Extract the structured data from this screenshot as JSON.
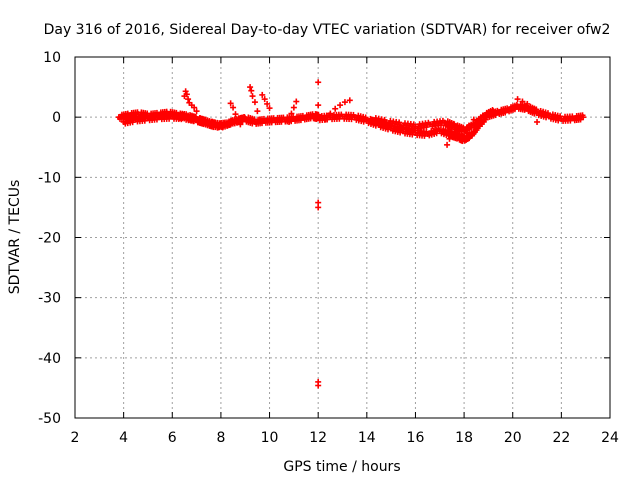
{
  "chart_data": {
    "type": "scatter",
    "title": "Day 316 of 2016, Sidereal Day-to-day VTEC variation (SDTVAR) for receiver ofw2",
    "xlabel": "GPS time / hours",
    "ylabel": "SDTVAR / TECUs",
    "xlim": [
      2,
      24
    ],
    "ylim": [
      -50,
      10
    ],
    "xticks": [
      2,
      4,
      6,
      8,
      10,
      12,
      14,
      16,
      18,
      20,
      22,
      24
    ],
    "yticks": [
      10,
      0,
      -10,
      -20,
      -30,
      -40,
      -50
    ],
    "xtick_labels": [
      "2",
      "4",
      "6",
      "8",
      "10",
      "12",
      "14",
      "16",
      "18",
      "20",
      "22",
      "24"
    ],
    "ytick_labels": [
      "10",
      "0",
      "-10",
      "-20",
      "-30",
      "-40",
      "-50"
    ],
    "grid": true,
    "marker_color": "#ff0000",
    "series": [
      {
        "name": "band-main",
        "x": [
          3.8,
          4.2,
          4.6,
          5.0,
          5.4,
          5.8,
          6.2,
          6.6,
          7.0,
          7.4,
          7.8,
          8.2,
          8.6,
          9.0,
          9.4,
          9.8,
          10.2,
          10.6,
          11.0,
          11.4,
          11.8,
          12.0
        ],
        "y": [
          0.0,
          0.3,
          0.5,
          0.2,
          0.4,
          0.6,
          0.3,
          0.1,
          -0.4,
          -0.9,
          -1.4,
          -1.2,
          -0.6,
          -0.3,
          -0.8,
          -0.6,
          -0.5,
          -0.4,
          -0.3,
          -0.1,
          0.2,
          0.0
        ]
      },
      {
        "name": "band-lower-arc",
        "x": [
          4.0,
          4.5,
          5.0,
          5.5,
          6.0,
          6.5,
          7.0,
          7.5,
          8.0,
          8.5,
          9.0
        ],
        "y": [
          -0.8,
          -0.4,
          -0.2,
          0.0,
          0.1,
          0.0,
          -0.4,
          -1.0,
          -1.5,
          -0.8,
          -0.2
        ]
      },
      {
        "name": "band-second",
        "x": [
          12.0,
          12.5,
          13.0,
          13.5,
          14.0,
          14.5,
          15.0,
          15.5,
          16.0,
          16.5,
          17.0,
          17.5,
          17.8,
          18.0,
          18.3,
          18.6,
          19.0,
          19.4,
          19.8,
          20.2,
          20.6,
          21.0,
          21.5,
          22.0,
          22.5,
          22.9
        ],
        "y": [
          -0.2,
          0.0,
          0.1,
          0.0,
          -0.5,
          -1.2,
          -1.8,
          -2.3,
          -2.6,
          -2.8,
          -2.2,
          -2.9,
          -3.3,
          -3.7,
          -3.0,
          -1.5,
          0.3,
          0.8,
          1.2,
          1.8,
          1.5,
          0.8,
          0.2,
          -0.3,
          -0.2,
          0.0
        ]
      },
      {
        "name": "band-second-upper",
        "x": [
          14.2,
          14.8,
          15.4,
          16.0,
          16.6,
          17.2,
          17.6,
          18.0,
          18.4,
          18.8,
          19.2
        ],
        "y": [
          -0.4,
          -0.9,
          -1.3,
          -1.6,
          -1.2,
          -0.9,
          -1.6,
          -2.2,
          -1.2,
          0.2,
          1.0
        ]
      },
      {
        "name": "excursions",
        "x": [
          6.5,
          6.55,
          6.6,
          6.65,
          6.7,
          6.8,
          6.9,
          7.0,
          8.4,
          8.5,
          8.6,
          8.7,
          8.8,
          9.2,
          9.25,
          9.3,
          9.4,
          9.5,
          9.6,
          9.7,
          9.8,
          9.9,
          10.0,
          10.8,
          10.9,
          11.0,
          11.1,
          12.3,
          12.5,
          12.7,
          12.9,
          13.1,
          13.3,
          17.3,
          17.4,
          17.5,
          17.6,
          18.1,
          18.2,
          18.4,
          20.2,
          20.4,
          20.6,
          21.0,
          21.2
        ],
        "y": [
          3.5,
          4.3,
          3.8,
          3.0,
          2.4,
          2.0,
          1.6,
          1.0,
          2.3,
          1.6,
          0.5,
          -0.6,
          -1.2,
          5.0,
          4.4,
          3.5,
          2.5,
          1.0,
          -0.4,
          3.7,
          3.0,
          2.2,
          1.5,
          -0.8,
          0.6,
          1.6,
          2.6,
          -0.4,
          0.6,
          1.4,
          2.0,
          2.5,
          2.8,
          -4.6,
          -3.6,
          -2.4,
          -1.2,
          -2.6,
          -1.4,
          -0.4,
          3.0,
          2.6,
          2.2,
          -0.8,
          0.4
        ]
      },
      {
        "name": "outliers",
        "x": [
          12.0,
          12.0,
          12.0,
          12.0,
          12.0,
          12.0
        ],
        "y": [
          5.8,
          -14.2,
          -15.0,
          2.0,
          -44.0,
          -44.6
        ]
      }
    ]
  }
}
